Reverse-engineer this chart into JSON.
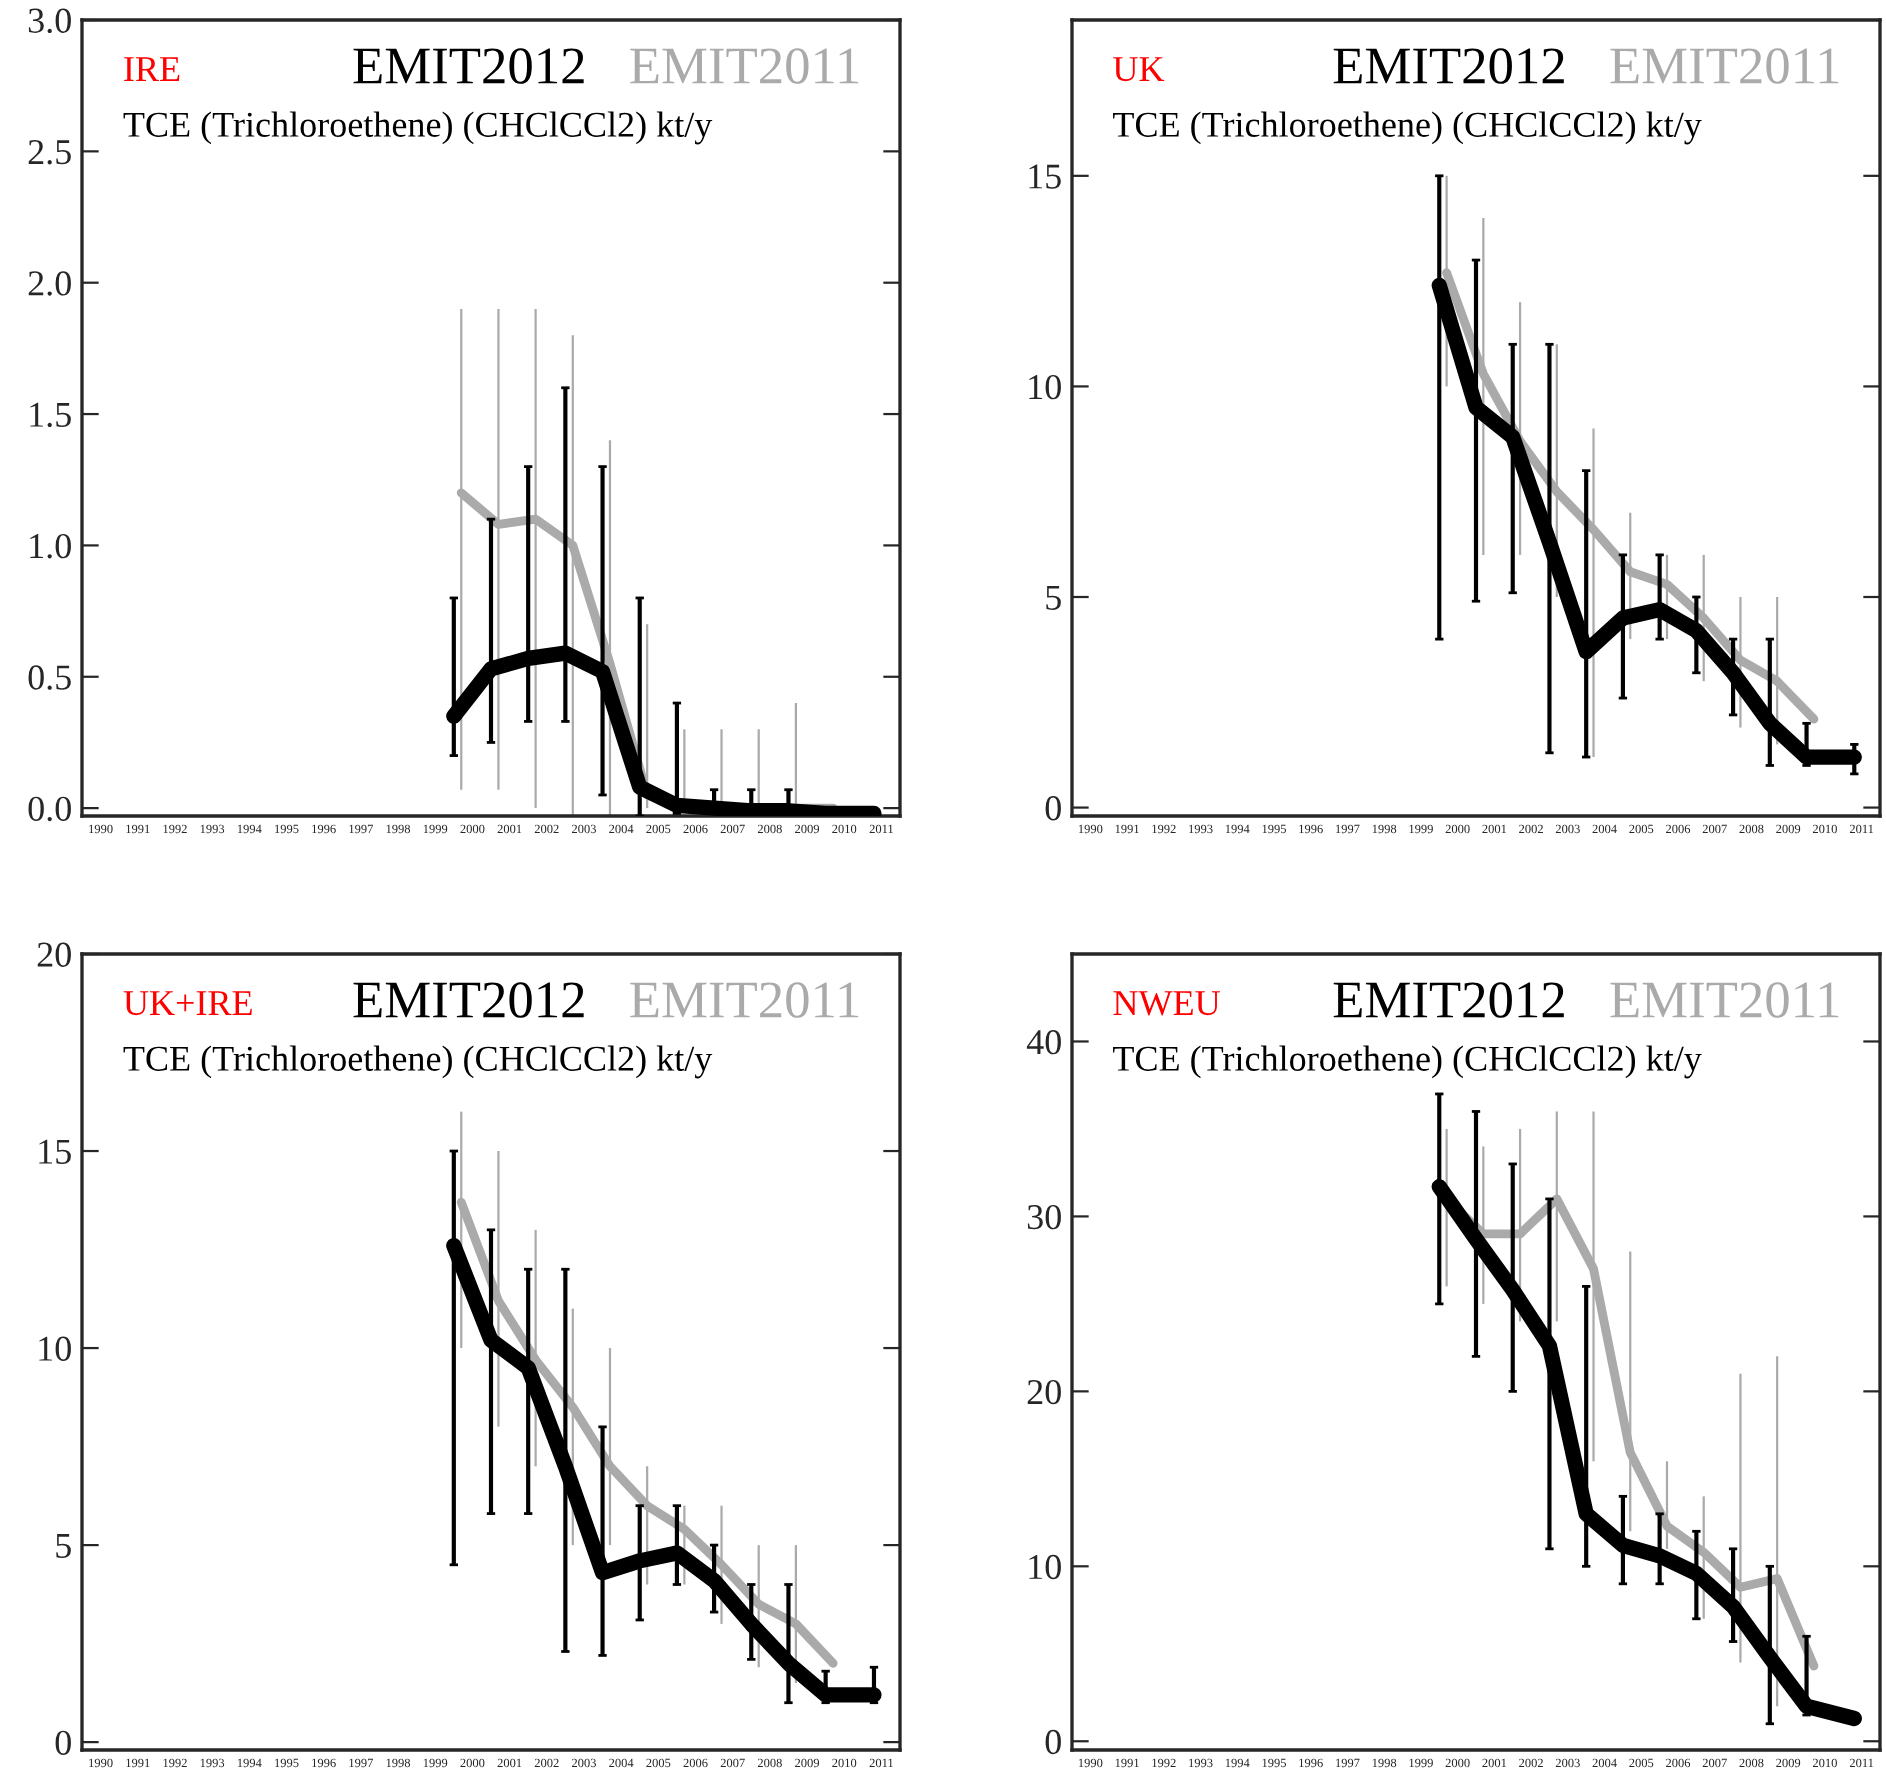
{
  "chart_data": [
    {
      "type": "line",
      "title": "IRE",
      "subtitle": "TCE (Trichloroethene) (CHClCCl2) kt/y",
      "legend": "top right",
      "xlim": [
        1990,
        2012
      ],
      "ylim": [
        -0.03,
        3.0
      ],
      "yticks": [
        {
          "value": 0,
          "label": "0.0"
        },
        0.5,
        {
          "value": 1,
          "label": "1.0"
        },
        1.5,
        {
          "value": 2,
          "label": "2.0"
        },
        2.5,
        {
          "value": 3,
          "label": "3.0"
        }
      ],
      "xticks": [
        {
          "value": 1990.5,
          "label": "1990"
        },
        {
          "value": 1991.5,
          "label": "1991"
        },
        {
          "value": 1992.5,
          "label": "1992"
        },
        {
          "value": 1993.5,
          "label": "1993"
        },
        {
          "value": 1994.5,
          "label": "1994"
        },
        {
          "value": 1995.5,
          "label": "1995"
        },
        {
          "value": 1996.5,
          "label": "1996"
        },
        {
          "value": 1997.5,
          "label": "1997"
        },
        {
          "value": 1998.5,
          "label": "1998"
        },
        {
          "value": 1999.5,
          "label": "1999"
        },
        {
          "value": 2000.5,
          "label": "2000"
        },
        {
          "value": 2001.5,
          "label": "2001"
        },
        {
          "value": 2002.5,
          "label": "2002"
        },
        {
          "value": 2003.5,
          "label": "2003"
        },
        {
          "value": 2004.5,
          "label": "2004"
        },
        {
          "value": 2005.5,
          "label": "2005"
        },
        {
          "value": 2006.5,
          "label": "2006"
        },
        {
          "value": 2007.5,
          "label": "2007"
        },
        {
          "value": 2008.5,
          "label": "2008"
        },
        {
          "value": 2009.5,
          "label": "2009"
        },
        {
          "value": 2010.5,
          "label": "2010"
        },
        {
          "value": 2011.5,
          "label": "2011"
        }
      ],
      "series": [
        {
          "name": "EMIT2011",
          "color": "#aaaaaa",
          "x": [
            2000.2,
            2001.2,
            2002.2,
            2003.2,
            2004.2,
            2005.2,
            2006.2,
            2007.2,
            2008.2,
            2009.2,
            2010.2
          ],
          "values": [
            1.2,
            1.08,
            1.1,
            1.0,
            0.55,
            0.05,
            0.0,
            0.0,
            0.0,
            0.0,
            0.0
          ],
          "errors": [
            [
              0.07,
              1.9
            ],
            [
              0.07,
              1.9
            ],
            [
              0.0,
              1.9
            ],
            [
              -0.03,
              1.8
            ],
            [
              -0.03,
              1.4
            ],
            [
              0.0,
              0.7
            ],
            [
              0.0,
              0.3
            ],
            [
              0.0,
              0.3
            ],
            [
              0.0,
              0.3
            ],
            [
              0.0,
              0.4
            ],
            null
          ]
        },
        {
          "name": "EMIT2012",
          "color": "#000000",
          "x": [
            2000,
            2001,
            2002,
            2003,
            2004,
            2005,
            2006,
            2007,
            2008,
            2009,
            2010,
            2011.3
          ],
          "values": [
            0.35,
            0.53,
            0.57,
            0.59,
            0.52,
            0.08,
            0.01,
            0.0,
            -0.01,
            -0.01,
            -0.02,
            -0.02
          ],
          "errors": [
            [
              0.2,
              0.8
            ],
            [
              0.25,
              1.1
            ],
            [
              0.33,
              1.3
            ],
            [
              0.33,
              1.6
            ],
            [
              0.05,
              1.3
            ],
            [
              -0.03,
              0.8
            ],
            [
              -0.02,
              0.4
            ],
            [
              0.0,
              0.07
            ],
            [
              -0.01,
              0.07
            ],
            [
              -0.01,
              0.07
            ],
            null,
            null
          ]
        }
      ]
    },
    {
      "type": "line",
      "title": "UK",
      "subtitle": "TCE (Trichloroethene) (CHClCCl2) kt/y",
      "legend": "top right",
      "xlim": [
        1990,
        2012
      ],
      "ylim": [
        -0.2,
        18.7
      ],
      "yticks": [
        0,
        5,
        10,
        15
      ],
      "xticks": [
        {
          "value": 1990.5,
          "label": "1990"
        },
        {
          "value": 1991.5,
          "label": "1991"
        },
        {
          "value": 1992.5,
          "label": "1992"
        },
        {
          "value": 1993.5,
          "label": "1993"
        },
        {
          "value": 1994.5,
          "label": "1994"
        },
        {
          "value": 1995.5,
          "label": "1995"
        },
        {
          "value": 1996.5,
          "label": "1996"
        },
        {
          "value": 1997.5,
          "label": "1997"
        },
        {
          "value": 1998.5,
          "label": "1998"
        },
        {
          "value": 1999.5,
          "label": "1999"
        },
        {
          "value": 2000.5,
          "label": "2000"
        },
        {
          "value": 2001.5,
          "label": "2001"
        },
        {
          "value": 2002.5,
          "label": "2002"
        },
        {
          "value": 2003.5,
          "label": "2003"
        },
        {
          "value": 2004.5,
          "label": "2004"
        },
        {
          "value": 2005.5,
          "label": "2005"
        },
        {
          "value": 2006.5,
          "label": "2006"
        },
        {
          "value": 2007.5,
          "label": "2007"
        },
        {
          "value": 2008.5,
          "label": "2008"
        },
        {
          "value": 2009.5,
          "label": "2009"
        },
        {
          "value": 2010.5,
          "label": "2010"
        },
        {
          "value": 2011.5,
          "label": "2011"
        }
      ],
      "series": [
        {
          "name": "EMIT2011",
          "color": "#aaaaaa",
          "x": [
            2000.2,
            2001.2,
            2002.2,
            2003.2,
            2004.2,
            2005.2,
            2006.2,
            2007.2,
            2008.2,
            2009.2,
            2010.2
          ],
          "values": [
            12.7,
            10.3,
            8.7,
            7.5,
            6.6,
            5.6,
            5.3,
            4.5,
            3.5,
            3.0,
            2.1
          ],
          "errors": [
            [
              10,
              15
            ],
            [
              6,
              14
            ],
            [
              6,
              12
            ],
            [
              5,
              11
            ],
            [
              1.2,
              9
            ],
            [
              4,
              7
            ],
            [
              4,
              6
            ],
            [
              3,
              6
            ],
            [
              1.9,
              5
            ],
            [
              1.5,
              5
            ],
            null
          ]
        },
        {
          "name": "EMIT2012",
          "color": "#000000",
          "x": [
            2000,
            2001,
            2002,
            2003,
            2004,
            2005,
            2006,
            2007,
            2008,
            2009,
            2010,
            2011.3
          ],
          "values": [
            12.4,
            9.5,
            8.8,
            6.3,
            3.7,
            4.5,
            4.7,
            4.2,
            3.2,
            2.0,
            1.2,
            1.2
          ],
          "errors": [
            [
              4,
              15
            ],
            [
              4.9,
              13
            ],
            [
              5.1,
              11
            ],
            [
              1.3,
              11
            ],
            [
              1.2,
              8
            ],
            [
              2.6,
              6
            ],
            [
              4,
              6
            ],
            [
              3.2,
              5
            ],
            [
              2.2,
              4
            ],
            [
              1.0,
              4
            ],
            [
              1.0,
              2
            ],
            [
              0.8,
              1.5
            ]
          ]
        }
      ]
    },
    {
      "type": "line",
      "title": "UK+IRE",
      "subtitle": "TCE (Trichloroethene) (CHClCCl2) kt/y",
      "legend": "top right",
      "xlim": [
        1990,
        2012
      ],
      "ylim": [
        -0.2,
        20
      ],
      "yticks": [
        0,
        5,
        10,
        15,
        20
      ],
      "xticks": [
        {
          "value": 1990.5,
          "label": "1990"
        },
        {
          "value": 1991.5,
          "label": "1991"
        },
        {
          "value": 1992.5,
          "label": "1992"
        },
        {
          "value": 1993.5,
          "label": "1993"
        },
        {
          "value": 1994.5,
          "label": "1994"
        },
        {
          "value": 1995.5,
          "label": "1995"
        },
        {
          "value": 1996.5,
          "label": "1996"
        },
        {
          "value": 1997.5,
          "label": "1997"
        },
        {
          "value": 1998.5,
          "label": "1998"
        },
        {
          "value": 1999.5,
          "label": "1999"
        },
        {
          "value": 2000.5,
          "label": "2000"
        },
        {
          "value": 2001.5,
          "label": "2001"
        },
        {
          "value": 2002.5,
          "label": "2002"
        },
        {
          "value": 2003.5,
          "label": "2003"
        },
        {
          "value": 2004.5,
          "label": "2004"
        },
        {
          "value": 2005.5,
          "label": "2005"
        },
        {
          "value": 2006.5,
          "label": "2006"
        },
        {
          "value": 2007.5,
          "label": "2007"
        },
        {
          "value": 2008.5,
          "label": "2008"
        },
        {
          "value": 2009.5,
          "label": "2009"
        },
        {
          "value": 2010.5,
          "label": "2010"
        },
        {
          "value": 2011.5,
          "label": "2011"
        }
      ],
      "series": [
        {
          "name": "EMIT2011",
          "color": "#aaaaaa",
          "x": [
            2000.2,
            2001.2,
            2002.2,
            2003.2,
            2004.2,
            2005.2,
            2006.2,
            2007.2,
            2008.2,
            2009.2,
            2010.2
          ],
          "values": [
            13.7,
            11.2,
            9.7,
            8.5,
            7.0,
            6.0,
            5.4,
            4.5,
            3.5,
            3.0,
            2.0
          ],
          "errors": [
            [
              10,
              16
            ],
            [
              8,
              15
            ],
            [
              7,
              13
            ],
            [
              5,
              11
            ],
            [
              5,
              10
            ],
            [
              4,
              7
            ],
            [
              4,
              6
            ],
            [
              3,
              6
            ],
            [
              1.9,
              5
            ],
            [
              1.5,
              5
            ],
            null
          ]
        },
        {
          "name": "EMIT2012",
          "color": "#000000",
          "x": [
            2000,
            2001,
            2002,
            2003,
            2004,
            2005,
            2006,
            2007,
            2008,
            2009,
            2010,
            2011.3
          ],
          "values": [
            12.6,
            10.2,
            9.5,
            7.0,
            4.3,
            4.6,
            4.8,
            4.1,
            3.0,
            2.0,
            1.2,
            1.2
          ],
          "errors": [
            [
              4.5,
              15
            ],
            [
              5.8,
              13
            ],
            [
              5.8,
              12
            ],
            [
              2.3,
              12
            ],
            [
              2.2,
              8
            ],
            [
              3.1,
              6
            ],
            [
              4.0,
              6
            ],
            [
              3.3,
              5
            ],
            [
              2.1,
              4
            ],
            [
              1.0,
              4
            ],
            [
              1.0,
              1.8
            ],
            [
              1.0,
              1.9
            ]
          ]
        }
      ]
    },
    {
      "type": "line",
      "title": "NWEU",
      "subtitle": "TCE (Trichloroethene) (CHClCCl2) kt/y",
      "legend": "top right",
      "xlim": [
        1990,
        2012
      ],
      "ylim": [
        -0.5,
        45
      ],
      "yticks": [
        0,
        10,
        20,
        30,
        40
      ],
      "xticks": [
        {
          "value": 1990.5,
          "label": "1990"
        },
        {
          "value": 1991.5,
          "label": "1991"
        },
        {
          "value": 1992.5,
          "label": "1992"
        },
        {
          "value": 1993.5,
          "label": "1993"
        },
        {
          "value": 1994.5,
          "label": "1994"
        },
        {
          "value": 1995.5,
          "label": "1995"
        },
        {
          "value": 1996.5,
          "label": "1996"
        },
        {
          "value": 1997.5,
          "label": "1997"
        },
        {
          "value": 1998.5,
          "label": "1998"
        },
        {
          "value": 1999.5,
          "label": "1999"
        },
        {
          "value": 2000.5,
          "label": "2000"
        },
        {
          "value": 2001.5,
          "label": "2001"
        },
        {
          "value": 2002.5,
          "label": "2002"
        },
        {
          "value": 2003.5,
          "label": "2003"
        },
        {
          "value": 2004.5,
          "label": "2004"
        },
        {
          "value": 2005.5,
          "label": "2005"
        },
        {
          "value": 2006.5,
          "label": "2006"
        },
        {
          "value": 2007.5,
          "label": "2007"
        },
        {
          "value": 2008.5,
          "label": "2008"
        },
        {
          "value": 2009.5,
          "label": "2009"
        },
        {
          "value": 2010.5,
          "label": "2010"
        },
        {
          "value": 2011.5,
          "label": "2011"
        }
      ],
      "series": [
        {
          "name": "EMIT2011",
          "color": "#aaaaaa",
          "x": [
            2000.2,
            2001.2,
            2002.2,
            2003.2,
            2004.2,
            2005.2,
            2006.2,
            2007.2,
            2008.2,
            2009.2,
            2010.2
          ],
          "values": [
            31,
            29,
            29,
            31,
            27,
            16.5,
            12.3,
            10.8,
            8.8,
            9.3,
            4.3
          ],
          "errors": [
            [
              26,
              35
            ],
            [
              25,
              34
            ],
            [
              24,
              35
            ],
            [
              24,
              36
            ],
            [
              16,
              36
            ],
            [
              12,
              28
            ],
            [
              11,
              16
            ],
            [
              7,
              14
            ],
            [
              4.5,
              21
            ],
            [
              2,
              22
            ],
            null
          ]
        },
        {
          "name": "EMIT2012",
          "color": "#000000",
          "x": [
            2000,
            2001,
            2002,
            2003,
            2004,
            2005,
            2006,
            2007,
            2008,
            2009,
            2010,
            2011.3
          ],
          "values": [
            31.7,
            28.7,
            25.8,
            22.6,
            13,
            11.2,
            10.6,
            9.6,
            7.7,
            4.8,
            2.0,
            1.3
          ],
          "errors": [
            [
              25,
              37
            ],
            [
              22,
              36
            ],
            [
              20,
              33
            ],
            [
              11,
              31
            ],
            [
              10,
              26
            ],
            [
              9,
              14
            ],
            [
              9,
              13
            ],
            [
              7,
              12
            ],
            [
              5.7,
              11
            ],
            [
              1,
              10
            ],
            [
              1.5,
              6
            ],
            null
          ]
        }
      ]
    }
  ]
}
